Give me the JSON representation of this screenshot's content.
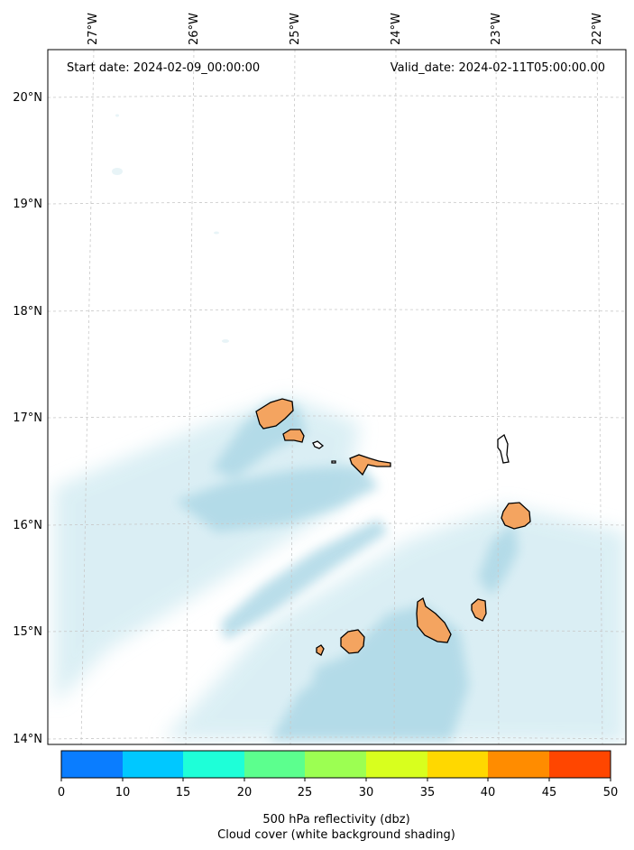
{
  "map": {
    "start_label": "Start date: 2024-02-09_00:00:00",
    "valid_label": "Valid_date: 2024-02-11T05:00:00.00",
    "lon_labels": [
      "27°W",
      "26°W",
      "25°W",
      "24°W",
      "23°W",
      "22°W"
    ],
    "lat_labels": [
      "20°N",
      "19°N",
      "18°N",
      "17°N",
      "16°N",
      "15°N",
      "14°N"
    ],
    "colors": {
      "land": "#f4a460",
      "cloud": "#add8e6",
      "grid": "#c8c8c8"
    }
  },
  "colorbar": {
    "ticks": [
      "0",
      "10",
      "15",
      "20",
      "25",
      "30",
      "35",
      "40",
      "45",
      "50"
    ],
    "colors": [
      "#0a7dff",
      "#00c8ff",
      "#1effd8",
      "#5cff8e",
      "#9cff52",
      "#d8ff1e",
      "#ffd800",
      "#ff8c00",
      "#ff4600"
    ],
    "title_line1": "500 hPa reflectivity (dbz)",
    "title_line2": "Cloud cover (white background shading)"
  }
}
